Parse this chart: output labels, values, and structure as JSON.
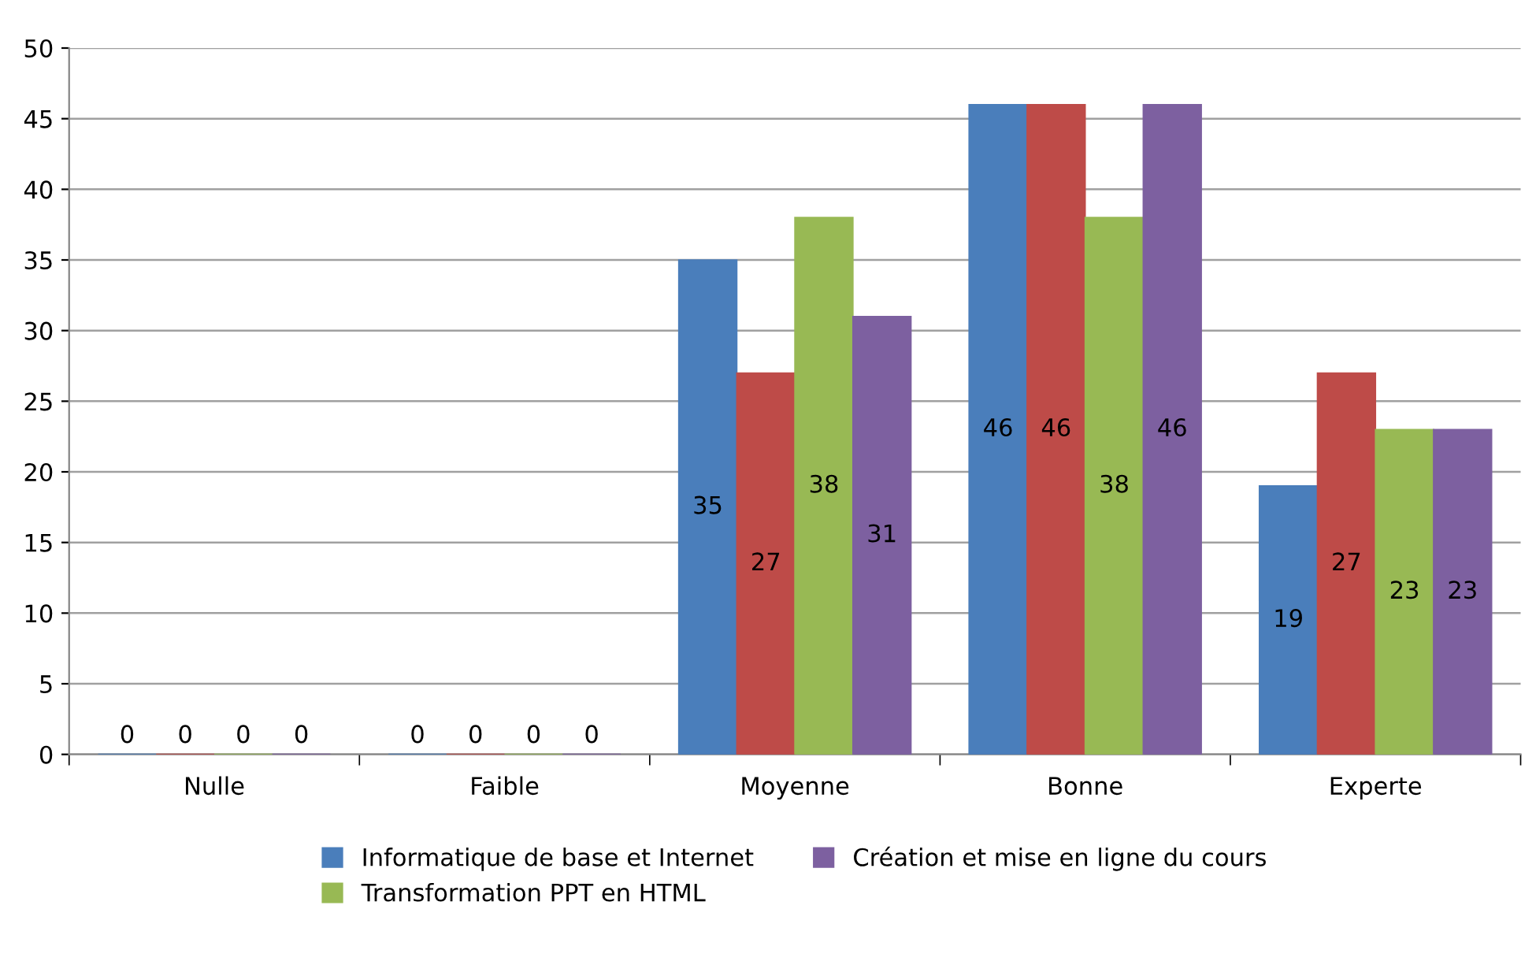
{
  "chart_data": {
    "type": "bar",
    "categories": [
      "Nulle",
      "Faible",
      "Moyenne",
      "Bonne",
      "Experte"
    ],
    "series": [
      {
        "name": "Informatique de base et Internet",
        "color": "#4a7ebb",
        "values": [
          0,
          0,
          35,
          46,
          19
        ]
      },
      {
        "color": "#be4b48",
        "values": [
          0,
          0,
          27,
          46,
          27
        ]
      },
      {
        "name": "Transformation PPT en HTML",
        "color": "#98b954",
        "values": [
          0,
          0,
          38,
          38,
          23
        ]
      },
      {
        "name": "Création et mise en ligne du cours",
        "color": "#7d60a0",
        "values": [
          0,
          0,
          31,
          46,
          23
        ]
      }
    ],
    "ylim": [
      0,
      50
    ],
    "yticks": [
      0,
      5,
      10,
      15,
      20,
      25,
      30,
      35,
      40,
      45,
      50
    ],
    "grid": "y",
    "legend": "bottom",
    "data_labels": true
  }
}
